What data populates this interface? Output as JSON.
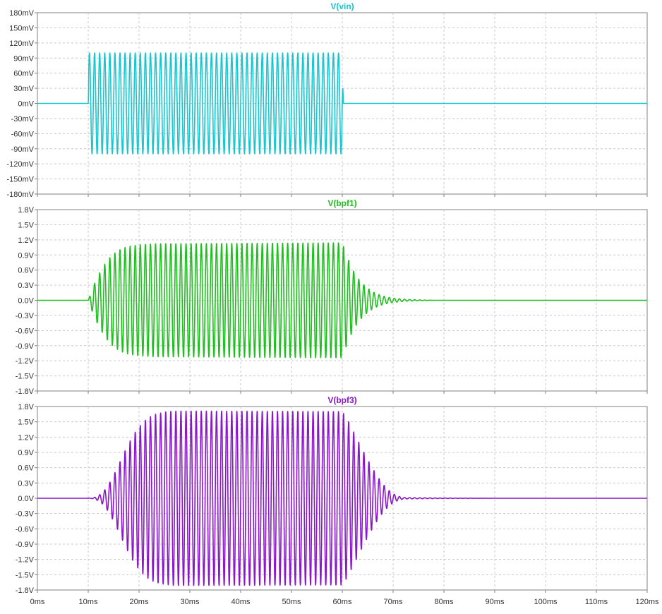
{
  "window": {
    "background": "#ffffff",
    "grid_color": "#c8c8c8",
    "frame_color": "#808080"
  },
  "chart_data": [
    {
      "type": "line",
      "title": "V(vin)",
      "color": "#19c6d0",
      "xlim": [
        0,
        120
      ],
      "ylim": [
        -180,
        180
      ],
      "x_ticks": [
        0,
        10,
        20,
        30,
        40,
        50,
        60,
        70,
        80,
        90,
        100,
        110,
        120
      ],
      "y_ticks": [
        180,
        150,
        120,
        90,
        60,
        30,
        0,
        -30,
        -60,
        -90,
        -120,
        -150,
        -180
      ],
      "y_tick_labels": [
        "180mV",
        "150mV",
        "120mV",
        "90mV",
        "60mV",
        "30mV",
        "0mV",
        "-30mV",
        "-60mV",
        "-90mV",
        "-120mV",
        "-150mV",
        "-180mV"
      ],
      "grid": true,
      "series": [
        {
          "signal": "burst",
          "cycles_per_ms": 1.0,
          "envelope": [
            [
              0,
              0
            ],
            [
              10.0,
              0
            ],
            [
              10.1,
              100
            ],
            [
              60.0,
              100
            ],
            [
              60.2,
              0
            ],
            [
              120,
              0
            ]
          ]
        }
      ]
    },
    {
      "type": "line",
      "title": "V(bpf1)",
      "color": "#1fbf1f",
      "xlim": [
        0,
        120
      ],
      "ylim": [
        -1.8,
        1.8
      ],
      "x_ticks": [
        0,
        10,
        20,
        30,
        40,
        50,
        60,
        70,
        80,
        90,
        100,
        110,
        120
      ],
      "y_ticks": [
        1.8,
        1.5,
        1.2,
        0.9,
        0.6,
        0.3,
        0.0,
        -0.3,
        -0.6,
        -0.9,
        -1.2,
        -1.5,
        -1.8
      ],
      "y_tick_labels": [
        "1.8V",
        "1.5V",
        "1.2V",
        "0.9V",
        "0.6V",
        "0.3V",
        "0.0V",
        "-0.3V",
        "-0.6V",
        "-0.9V",
        "-1.2V",
        "-1.5V",
        "-1.8V"
      ],
      "grid": true,
      "series": [
        {
          "signal": "burst",
          "cycles_per_ms": 1.0,
          "envelope": [
            [
              0,
              0
            ],
            [
              10,
              0
            ],
            [
              11,
              0.28
            ],
            [
              12,
              0.5
            ],
            [
              13,
              0.68
            ],
            [
              14,
              0.82
            ],
            [
              15,
              0.92
            ],
            [
              16,
              0.99
            ],
            [
              17,
              1.04
            ],
            [
              18,
              1.07
            ],
            [
              20,
              1.1
            ],
            [
              23,
              1.12
            ],
            [
              60,
              1.14
            ],
            [
              61,
              0.85
            ],
            [
              62,
              0.62
            ],
            [
              63,
              0.45
            ],
            [
              64,
              0.33
            ],
            [
              65,
              0.24
            ],
            [
              66,
              0.17
            ],
            [
              67,
              0.12
            ],
            [
              68,
              0.085
            ],
            [
              69,
              0.06
            ],
            [
              70,
              0.043
            ],
            [
              72,
              0.022
            ],
            [
              74,
              0.011
            ],
            [
              76,
              0.005
            ],
            [
              78,
              0
            ],
            [
              120,
              0
            ]
          ]
        }
      ]
    },
    {
      "type": "line",
      "title": "V(bpf3)",
      "color": "#8a17c9",
      "xlim": [
        0,
        120
      ],
      "ylim": [
        -1.8,
        1.8
      ],
      "x_ticks": [
        0,
        10,
        20,
        30,
        40,
        50,
        60,
        70,
        80,
        90,
        100,
        110,
        120
      ],
      "x_tick_labels": [
        "0ms",
        "10ms",
        "20ms",
        "30ms",
        "40ms",
        "50ms",
        "60ms",
        "70ms",
        "80ms",
        "90ms",
        "100ms",
        "110ms",
        "120ms"
      ],
      "y_ticks": [
        1.8,
        1.5,
        1.2,
        0.9,
        0.6,
        0.3,
        0.0,
        -0.3,
        -0.6,
        -0.9,
        -1.2,
        -1.5,
        -1.8
      ],
      "y_tick_labels": [
        "1.8V",
        "1.5V",
        "1.2V",
        "0.9V",
        "0.6V",
        "0.3V",
        "0.0V",
        "-0.3V",
        "-0.6V",
        "-0.9V",
        "-1.2V",
        "-1.5V",
        "-1.8V"
      ],
      "grid": true,
      "series": [
        {
          "signal": "burst",
          "cycles_per_ms": 1.0,
          "envelope": [
            [
              0,
              0
            ],
            [
              10,
              0
            ],
            [
              11,
              0.01
            ],
            [
              12,
              0.05
            ],
            [
              13,
              0.13
            ],
            [
              14,
              0.27
            ],
            [
              15,
              0.45
            ],
            [
              16,
              0.66
            ],
            [
              17,
              0.88
            ],
            [
              18,
              1.08
            ],
            [
              19,
              1.26
            ],
            [
              20,
              1.4
            ],
            [
              21,
              1.51
            ],
            [
              22,
              1.59
            ],
            [
              23,
              1.64
            ],
            [
              25,
              1.69
            ],
            [
              27,
              1.71
            ],
            [
              60,
              1.7
            ],
            [
              61,
              1.55
            ],
            [
              62,
              1.35
            ],
            [
              63,
              1.15
            ],
            [
              64,
              0.95
            ],
            [
              65,
              0.76
            ],
            [
              66,
              0.58
            ],
            [
              67,
              0.42
            ],
            [
              68,
              0.28
            ],
            [
              69,
              0.17
            ],
            [
              70,
              0.09
            ],
            [
              71,
              0.04
            ],
            [
              72,
              0.015
            ],
            [
              75,
              0.01
            ],
            [
              80,
              0.005
            ],
            [
              85,
              0.002
            ],
            [
              90,
              0
            ],
            [
              120,
              0
            ]
          ]
        }
      ]
    }
  ]
}
